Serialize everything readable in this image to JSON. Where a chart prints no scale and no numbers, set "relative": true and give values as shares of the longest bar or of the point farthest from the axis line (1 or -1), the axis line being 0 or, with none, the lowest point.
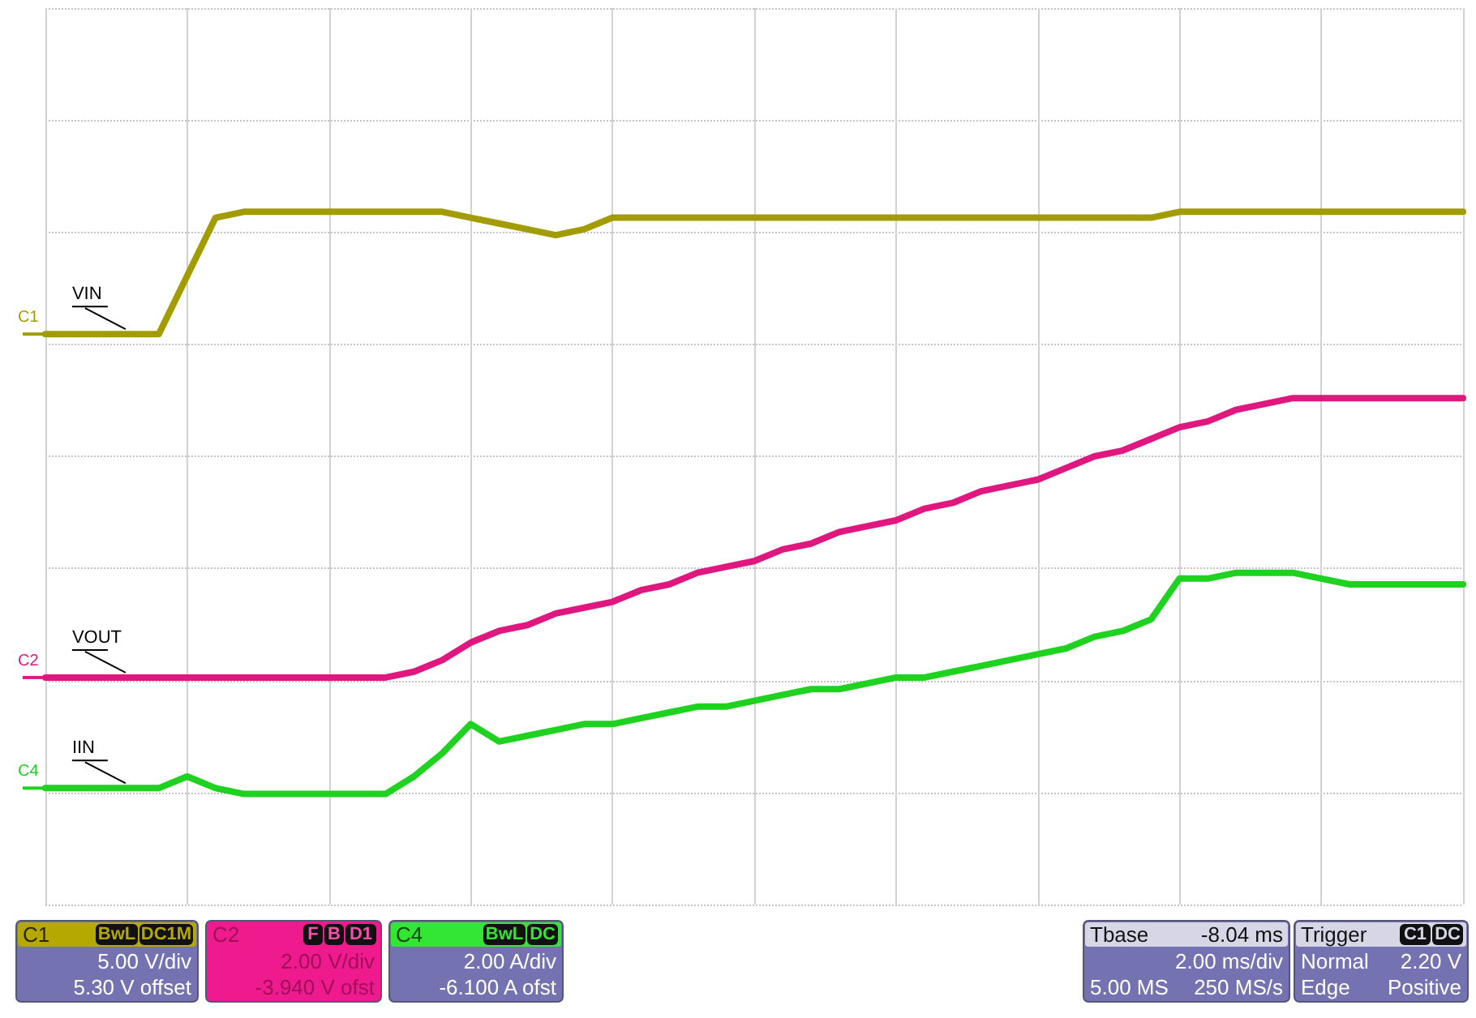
{
  "chart_data": {
    "type": "line",
    "relative": true,
    "categories": [
      null,
      null,
      null,
      null,
      null,
      null,
      null,
      null,
      null,
      null,
      null,
      null,
      null,
      null,
      null,
      null,
      null,
      null,
      null,
      null,
      null,
      null,
      null,
      null,
      null,
      null,
      null,
      null,
      null,
      null,
      null,
      null,
      null,
      null,
      null,
      null,
      null,
      null,
      null,
      null,
      null,
      null,
      null,
      null,
      null,
      null,
      null,
      null,
      null,
      null,
      null
    ],
    "series": [
      {
        "name": "VIN",
        "color": "#a39c00",
        "values": [
          0.79,
          0.79,
          0.79,
          0.79,
          0.79,
          0.89,
          0.99,
          1.0,
          1.0,
          1.0,
          1.0,
          1.0,
          1.0,
          1.0,
          1.0,
          0.99,
          0.98,
          0.97,
          0.96,
          0.97,
          0.99,
          0.99,
          0.99,
          0.99,
          0.99,
          0.99,
          0.99,
          0.99,
          0.99,
          0.99,
          0.99,
          0.99,
          0.99,
          0.99,
          0.99,
          0.99,
          0.99,
          0.99,
          0.99,
          0.99,
          1.0,
          1.0,
          1.0,
          1.0,
          1.0,
          1.0,
          1.0,
          1.0,
          1.0,
          1.0,
          1.0
        ]
      },
      {
        "name": "VOUT",
        "color": "#e0177e",
        "values": [
          0.2,
          0.2,
          0.2,
          0.2,
          0.2,
          0.2,
          0.2,
          0.2,
          0.2,
          0.2,
          0.2,
          0.2,
          0.2,
          0.21,
          0.23,
          0.26,
          0.28,
          0.29,
          0.31,
          0.32,
          0.33,
          0.35,
          0.36,
          0.38,
          0.39,
          0.4,
          0.42,
          0.43,
          0.45,
          0.46,
          0.47,
          0.49,
          0.5,
          0.52,
          0.53,
          0.54,
          0.56,
          0.58,
          0.59,
          0.61,
          0.63,
          0.64,
          0.66,
          0.67,
          0.68,
          0.68,
          0.68,
          0.68,
          0.68,
          0.68,
          0.68
        ]
      },
      {
        "name": "IIN",
        "color": "#1fd21f",
        "values": [
          0.01,
          0.01,
          0.01,
          0.01,
          0.01,
          0.03,
          0.01,
          0.0,
          0.0,
          0.0,
          0.0,
          0.0,
          0.0,
          0.03,
          0.07,
          0.12,
          0.09,
          0.1,
          0.11,
          0.12,
          0.12,
          0.13,
          0.14,
          0.15,
          0.15,
          0.16,
          0.17,
          0.18,
          0.18,
          0.19,
          0.2,
          0.2,
          0.21,
          0.22,
          0.23,
          0.24,
          0.25,
          0.27,
          0.28,
          0.3,
          0.37,
          0.37,
          0.38,
          0.38,
          0.38,
          0.37,
          0.36,
          0.36,
          0.36,
          0.36,
          0.36
        ]
      }
    ],
    "annotations": [
      "C1",
      "C2",
      "C4",
      "C1",
      "BwL",
      "DC1M",
      "5.00 V/div",
      "5.30 V offset",
      "C2",
      "F",
      "B",
      "D1",
      "2.00 V/div",
      "-3.940 V ofst",
      "C4",
      "BwL",
      "DC",
      "2.00 A/div",
      "-6.100 A ofst",
      "Tbase",
      "-8.04 ms",
      "2.00 ms/div",
      "5.00 MS",
      "250 MS/s",
      "Trigger",
      "C1",
      "DC",
      "Normal",
      "2.20 V",
      "Edge",
      "Positive"
    ],
    "grid": true,
    "legend": false,
    "marker": "none",
    "line_style": "solid"
  }
}
